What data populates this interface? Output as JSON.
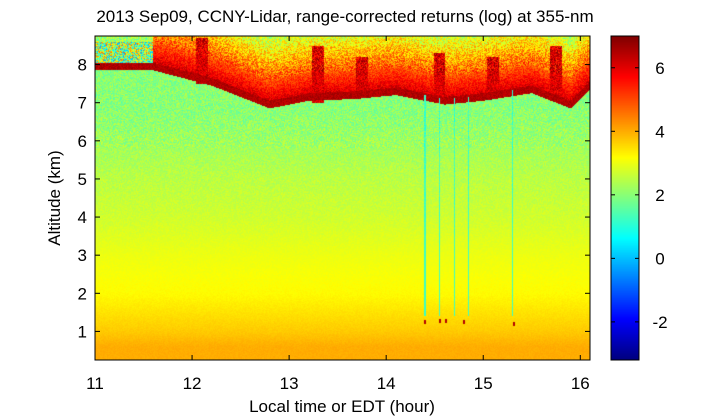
{
  "chart_data": {
    "type": "heatmap",
    "title": "2013 Sep09, CCNY-Lidar, range-corrected returns (log) at 355-nm",
    "xlabel": "Local time or EDT (hour)",
    "ylabel": "Altitude (km)",
    "xlim": [
      11.0,
      16.1
    ],
    "ylim": [
      0.25,
      8.75
    ],
    "xticks": [
      11,
      12,
      13,
      14,
      15,
      16
    ],
    "yticks": [
      1,
      2,
      3,
      4,
      5,
      6,
      7,
      8
    ],
    "colorbar": {
      "clim": [
        -3.2,
        7.0
      ],
      "ticks": [
        -2,
        0,
        2,
        4,
        6
      ],
      "colormap": "jet"
    },
    "profile_reference": [
      {
        "altitude_km": 0.6,
        "value": 4.0
      },
      {
        "altitude_km": 1.0,
        "value": 3.7
      },
      {
        "altitude_km": 2.0,
        "value": 3.2
      },
      {
        "altitude_km": 3.0,
        "value": 3.0
      },
      {
        "altitude_km": 4.0,
        "value": 2.7
      },
      {
        "altitude_km": 5.0,
        "value": 2.5
      },
      {
        "altitude_km": 6.0,
        "value": 2.2
      },
      {
        "altitude_km": 6.8,
        "value": 2.0
      }
    ],
    "cloud_layer": {
      "description_value": 6.2,
      "base_points": [
        {
          "x": 11.6,
          "y": 8.0
        },
        {
          "x": 12.2,
          "y": 7.6
        },
        {
          "x": 12.8,
          "y": 7.0
        },
        {
          "x": 13.2,
          "y": 7.2
        },
        {
          "x": 13.7,
          "y": 7.25
        },
        {
          "x": 14.1,
          "y": 7.35
        },
        {
          "x": 14.6,
          "y": 7.1
        },
        {
          "x": 15.0,
          "y": 7.2
        },
        {
          "x": 15.5,
          "y": 7.4
        },
        {
          "x": 15.9,
          "y": 7.0
        },
        {
          "x": 16.1,
          "y": 7.5
        }
      ]
    },
    "plumes": [
      {
        "x": 12.1,
        "y_top": 8.7,
        "y_bottom": 7.5
      },
      {
        "x": 13.3,
        "y_top": 8.5,
        "y_bottom": 7.0
      },
      {
        "x": 13.75,
        "y_top": 8.2,
        "y_bottom": 7.2
      },
      {
        "x": 14.55,
        "y_top": 8.3,
        "y_bottom": 7.2
      },
      {
        "x": 15.1,
        "y_top": 8.2,
        "y_bottom": 7.3
      },
      {
        "x": 15.75,
        "y_top": 8.5,
        "y_bottom": 7.3
      }
    ],
    "vertical_streaks": [
      14.4,
      14.55,
      14.7,
      14.85,
      15.3
    ],
    "low_cloud_points": [
      {
        "x": 14.4,
        "y": 1.25
      },
      {
        "x": 14.55,
        "y": 1.28
      },
      {
        "x": 14.62,
        "y": 1.27
      },
      {
        "x": 14.8,
        "y": 1.24
      },
      {
        "x": 15.32,
        "y": 1.2
      }
    ]
  }
}
